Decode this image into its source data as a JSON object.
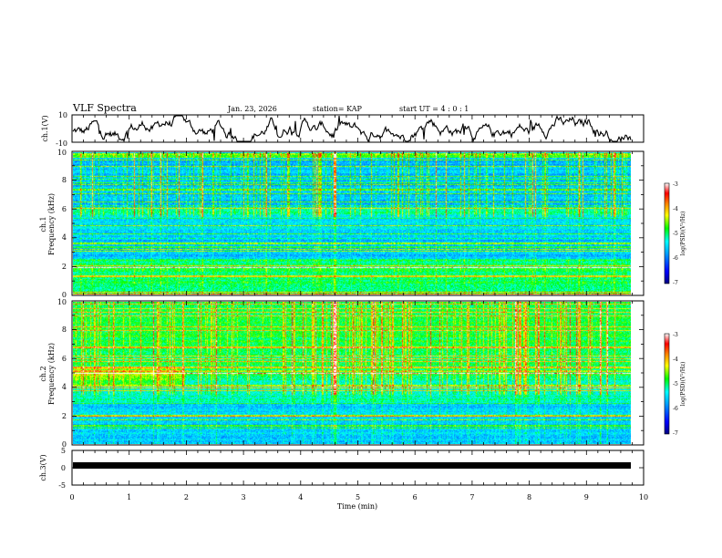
{
  "header": {
    "title": "VLF Spectra",
    "date": "Jan. 23, 2026",
    "station": "station= KAP",
    "start": "start  UT =   4 : 0 : 1"
  },
  "chart_data": [
    {
      "type": "line",
      "name": "ch1-waveform",
      "ylabel": "ch.1(V)",
      "ylim": [
        -10,
        10
      ],
      "yticklabels": [
        "10",
        "-10"
      ],
      "xlim": [
        0,
        10
      ]
    },
    {
      "type": "heatmap",
      "name": "ch1-spectrogram",
      "ylabel": "ch.1",
      "ylabel2": "Frequency (kHz)",
      "ylim": [
        0,
        10
      ],
      "yticklabels": [
        "0",
        "2",
        "4",
        "6",
        "8",
        "10"
      ],
      "xlim": [
        0,
        9.8
      ],
      "colorbar": {
        "label": "log(PSD)(V²/Hz)",
        "range": [
          -7,
          -3
        ],
        "ticklabels": [
          "-3",
          "-4",
          "-5",
          "-6",
          "-7"
        ]
      }
    },
    {
      "type": "heatmap",
      "name": "ch2-spectrogram",
      "ylabel": "ch.2",
      "ylabel2": "Frequency (kHz)",
      "ylim": [
        0,
        10
      ],
      "yticklabels": [
        "0",
        "2",
        "4",
        "6",
        "8",
        "10"
      ],
      "xlim": [
        0,
        9.8
      ],
      "colorbar": {
        "label": "log(PSD)(V²/Hz)",
        "range": [
          -7,
          -3
        ],
        "ticklabels": [
          "-3",
          "-4",
          "-5",
          "-6",
          "-7"
        ]
      }
    },
    {
      "type": "line",
      "name": "ch3-waveform",
      "ylabel": "ch.3(V)",
      "ylim": [
        -5,
        5
      ],
      "yticklabels": [
        "5",
        "0",
        "-5"
      ],
      "xlim": [
        0,
        10
      ]
    }
  ],
  "xaxis": {
    "label": "Time (min)",
    "ticks": [
      0,
      1,
      2,
      3,
      4,
      5,
      6,
      7,
      8,
      9,
      10
    ],
    "ticklabels": [
      "0",
      "1",
      "2",
      "3",
      "4",
      "5",
      "6",
      "7",
      "8",
      "9",
      "10"
    ]
  },
  "colors": {
    "frame": "#000000",
    "trace": "#000000",
    "colormap": [
      "#00008c",
      "#0000ff",
      "#00a0ff",
      "#00ffff",
      "#00ff00",
      "#ffff00",
      "#ff8000",
      "#ff0000",
      "#d00000",
      "#ffffff"
    ]
  }
}
